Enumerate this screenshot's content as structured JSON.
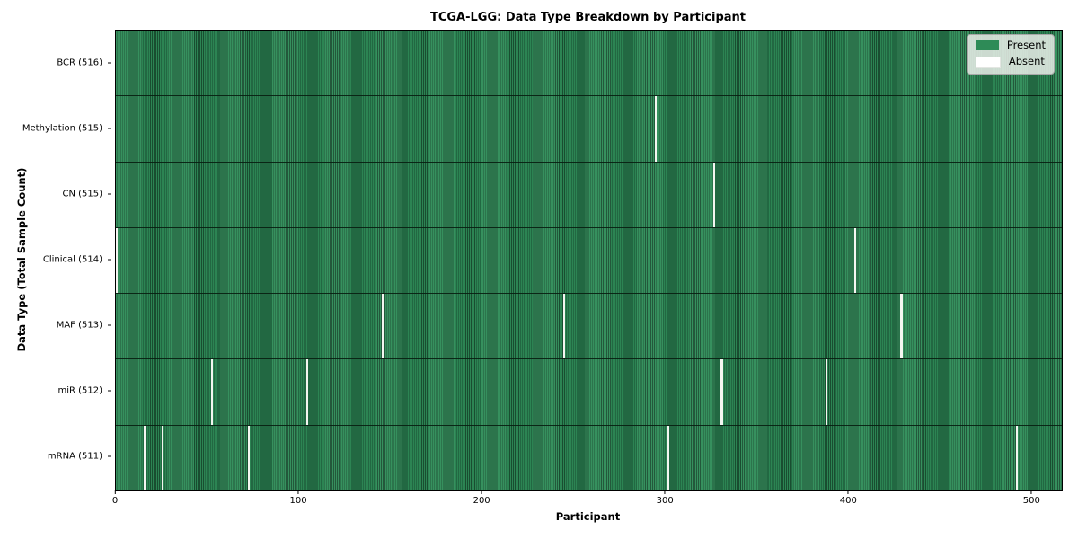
{
  "chart_data": {
    "type": "heatmap",
    "title": "TCGA-LGG: Data Type Breakdown by Participant",
    "xlabel": "Participant",
    "ylabel": "Data Type (Total Sample Count)",
    "xlim": [
      0,
      516
    ],
    "n_participants": 516,
    "x_ticks": [
      0,
      100,
      200,
      300,
      400,
      500
    ],
    "grid": false,
    "legend_position": "upper right",
    "legend": [
      {
        "label": "Present",
        "color": "#2e8b57"
      },
      {
        "label": "Absent",
        "color": "#ffffff"
      }
    ],
    "rows": [
      {
        "label": "BCR (516)",
        "data_type": "BCR",
        "sample_count": 516,
        "absent_participants": []
      },
      {
        "label": "Methylation (515)",
        "data_type": "Methylation",
        "sample_count": 515,
        "absent_participants": [
          294
        ]
      },
      {
        "label": "CN (515)",
        "data_type": "CN",
        "sample_count": 515,
        "absent_participants": [
          326
        ]
      },
      {
        "label": "Clinical (514)",
        "data_type": "Clinical",
        "sample_count": 514,
        "absent_participants": [
          0,
          403
        ]
      },
      {
        "label": "MAF (513)",
        "data_type": "MAF",
        "sample_count": 513,
        "absent_participants": [
          145,
          244,
          428
        ]
      },
      {
        "label": "miR (512)",
        "data_type": "miR",
        "sample_count": 512,
        "absent_participants": [
          52,
          104,
          330,
          387
        ]
      },
      {
        "label": "mRNA (511)",
        "data_type": "mRNA",
        "sample_count": 511,
        "absent_participants": [
          15,
          25,
          72,
          301,
          491
        ]
      }
    ],
    "colors": {
      "present": "#2e8b57",
      "present_stripe_dark": "#1a5133",
      "absent": "#f4f6f1",
      "row_divider": "#081e11",
      "axis": "#000000",
      "legend_background": "#ebefea"
    }
  }
}
